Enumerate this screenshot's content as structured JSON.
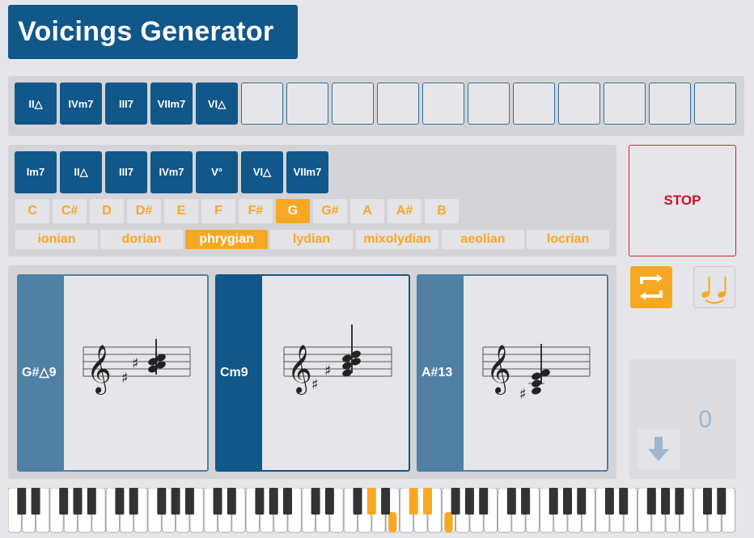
{
  "app": {
    "title": "Voicings Generator"
  },
  "sequence": {
    "chords": [
      "II△",
      "IVm7",
      "III7",
      "VIIm7",
      "VI△"
    ],
    "empty_slots": 11
  },
  "degrees": [
    "Im7",
    "II△",
    "III7",
    "IVm7",
    "V°",
    "VI△",
    "VIIm7"
  ],
  "keys": {
    "items": [
      "C",
      "C#",
      "D",
      "D#",
      "E",
      "F",
      "F#",
      "G",
      "G#",
      "A",
      "A#",
      "B"
    ],
    "selected": "G"
  },
  "modes": {
    "items": [
      "ionian",
      "dorian",
      "phrygian",
      "lydian",
      "mixolydian",
      "aeolian",
      "locrian"
    ],
    "selected": "phrygian"
  },
  "controls": {
    "stop_label": "STOP",
    "counter_value": "0"
  },
  "voicings": [
    {
      "label": "G#△9",
      "selected": false
    },
    {
      "label": "Cm9",
      "selected": true
    },
    {
      "label": "A#13",
      "selected": false
    }
  ],
  "colors": {
    "primary": "#11578a",
    "secondary": "#5080a3",
    "accent": "#f7a823",
    "stop": "#cc1122",
    "background": "#e6e6ea",
    "panel": "#d4d4d8"
  },
  "icons": {
    "loop": "loop-icon",
    "notes": "notes-icon",
    "download": "download-arrow-icon",
    "treble_clef": "treble-clef-icon"
  }
}
